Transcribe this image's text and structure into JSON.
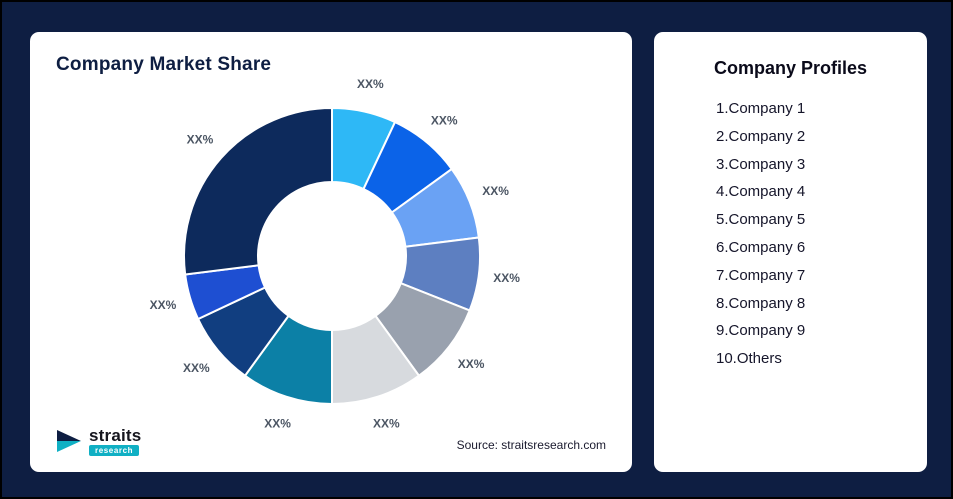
{
  "page": {
    "background": "#0e1e42"
  },
  "left_card": {
    "title": "Company Market Share",
    "source": "Source: straitsresearch.com",
    "logo_text": "straits",
    "logo_sub": "research"
  },
  "right_card": {
    "title": "Company Profiles",
    "items": [
      "1.Company 1",
      "2.Company 2",
      "3.Company 3",
      "4.Company 4",
      "5.Company 5",
      "6.Company 6",
      "7.Company 7",
      "8.Company 8",
      "9.Company 9",
      "10.Others"
    ]
  },
  "chart_data": {
    "type": "pie",
    "subtype": "donut",
    "title": "Company Market Share",
    "source": "Source: straitsresearch.com",
    "legend_position": "none",
    "note": "All segment data labels display the placeholder text XX%; values below are approximate segment sizes (percent) estimated from arc angles, clockwise from 12 o'clock",
    "segments": [
      {
        "name": "Company 1",
        "label": "XX%",
        "value": 7,
        "color": "#2eb8f6"
      },
      {
        "name": "Company 2",
        "label": "XX%",
        "value": 8,
        "color": "#0b63e8"
      },
      {
        "name": "Company 3",
        "label": "XX%",
        "value": 8,
        "color": "#6aa2f4"
      },
      {
        "name": "Company 4",
        "label": "XX%",
        "value": 8,
        "color": "#5d7fc1"
      },
      {
        "name": "Company 5",
        "label": "XX%",
        "value": 9,
        "color": "#99a1ae"
      },
      {
        "name": "Company 6",
        "label": "XX%",
        "value": 10,
        "color": "#d7dade"
      },
      {
        "name": "Company 7",
        "label": "XX%",
        "value": 10,
        "color": "#0c80a6"
      },
      {
        "name": "Company 8",
        "label": "XX%",
        "value": 8,
        "color": "#113e80"
      },
      {
        "name": "Company 9",
        "label": "XX%",
        "value": 5,
        "color": "#1e4fd2"
      },
      {
        "name": "Others",
        "label": "XX%",
        "value": 27,
        "color": "#0d2a5c"
      }
    ]
  }
}
